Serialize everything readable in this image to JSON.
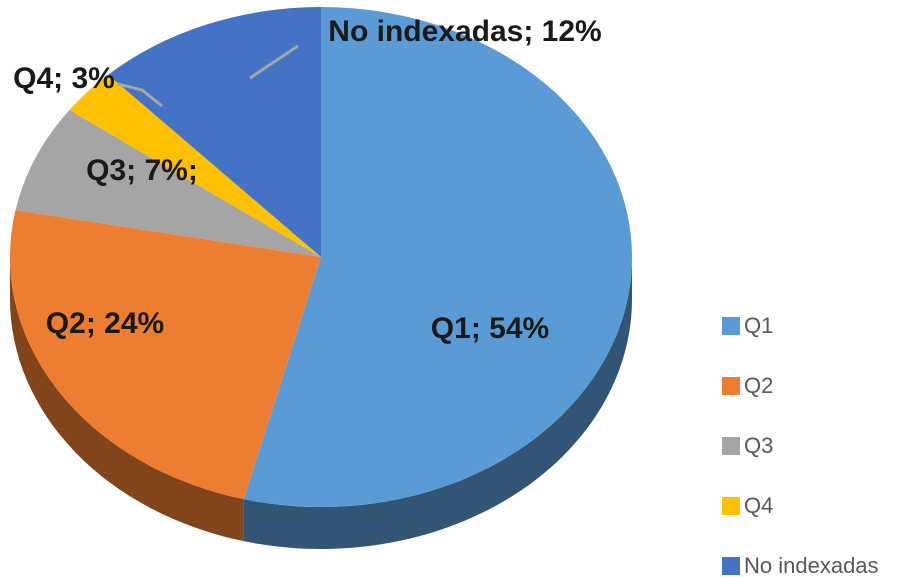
{
  "chart_data": {
    "type": "pie",
    "categories": [
      "Q1",
      "Q2",
      "Q3",
      "Q4",
      "No indexadas"
    ],
    "values": [
      54,
      24,
      7,
      3,
      12
    ],
    "value_labels": [
      "Q1; 54%",
      "Q2; 24%",
      "Q3; 7%;",
      "Q4; 3%",
      "No indexadas; 12%"
    ],
    "colors": [
      "#5b9bd5",
      "#ed7d31",
      "#a5a5a5",
      "#ffc000",
      "#4472c4"
    ],
    "legend": "right"
  }
}
